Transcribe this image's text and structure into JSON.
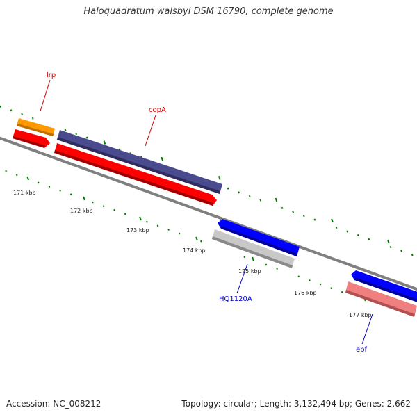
{
  "title": "Haloquadratum walsbyi DSM 16790, complete genome",
  "footer": {
    "accession": "Accession: NC_008212",
    "summary": "Topology: circular; Length: 3,132,494 bp; Genes: 2,662"
  },
  "scale_labels": [
    "171 kbp",
    "172 kbp",
    "173 kbp",
    "174 kbp",
    "175 kbp",
    "176 kbp",
    "177 kbp"
  ],
  "gene_labels": [
    {
      "text": "lrp",
      "color": "#cc0000"
    },
    {
      "text": "copA",
      "color": "#cc0000"
    },
    {
      "text": "HQ1120A",
      "color": "#0000cc"
    },
    {
      "text": "epf",
      "color": "#0000cc"
    }
  ],
  "feature_colors": {
    "backbone": "#808080",
    "tick": "#008000",
    "orange": "#ff9900",
    "purple": "#4a4a8e",
    "red": "#ff0000",
    "blue": "#0000ff",
    "gray": "#c8c8c8",
    "pink": "#f08080"
  }
}
